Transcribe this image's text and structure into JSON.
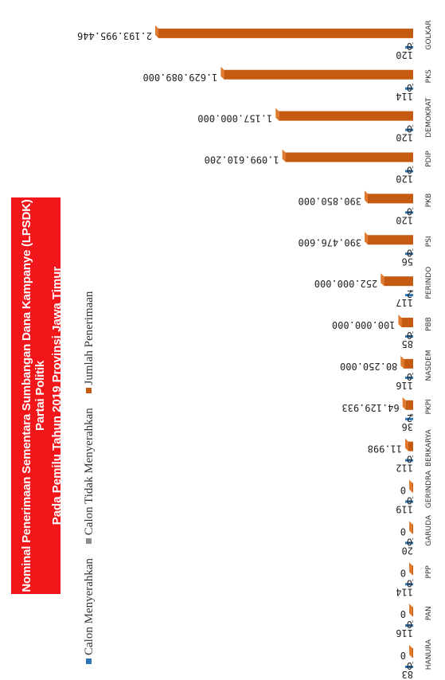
{
  "chart_data": {
    "type": "bar",
    "title": "Nominal Penerimaan Sementara Sumbangan Dana Kampanye (LPSDK) Partai Politik",
    "subtitle": "Pada Pemilu Tahun 2019 Provinsi Jawa Timur",
    "categories": [
      "HANURA",
      "PAN",
      "PPP",
      "GARUDA",
      "GERINDRA",
      "BERKARYA",
      "PKPI",
      "NASDEM",
      "PBB",
      "PERINDO",
      "PSI",
      "PKB",
      "PDIP",
      "DEMOKRAT",
      "PKS",
      "GOLKAR"
    ],
    "series": [
      {
        "name": "Calon Menyerahkan",
        "color": "#2e75b6",
        "values": [
          83,
          116,
          114,
          20,
          119,
          112,
          36,
          116,
          85,
          117,
          56,
          120,
          120,
          120,
          114,
          120
        ]
      },
      {
        "name": "Calon Tidak Menyerahkan",
        "color": "#8c8c8c",
        "values": [
          0,
          0,
          0,
          0,
          0,
          0,
          2,
          0,
          0,
          2,
          0,
          0,
          0,
          0,
          0,
          0
        ]
      },
      {
        "name": "Jumlah Penerimaan",
        "color": "#c55a11",
        "values": [
          0,
          0,
          0,
          0,
          0,
          11998,
          64129933,
          80250000,
          100000000,
          252000000,
          390476600,
          390850000,
          1099610200,
          1157000000,
          1629089000,
          2193995446
        ]
      }
    ],
    "value_labels": [
      "0",
      "0",
      "0",
      "0",
      "0",
      "11.998",
      "64.129.933",
      "80.250.000",
      "100.000.000",
      "252.000.000",
      "390.476.600",
      "390.850.000",
      "1.099.610.200",
      "1.157.000.000",
      "1.629.089.000",
      "2.193.995.446"
    ],
    "legend_position": "bottom",
    "grid": false
  }
}
